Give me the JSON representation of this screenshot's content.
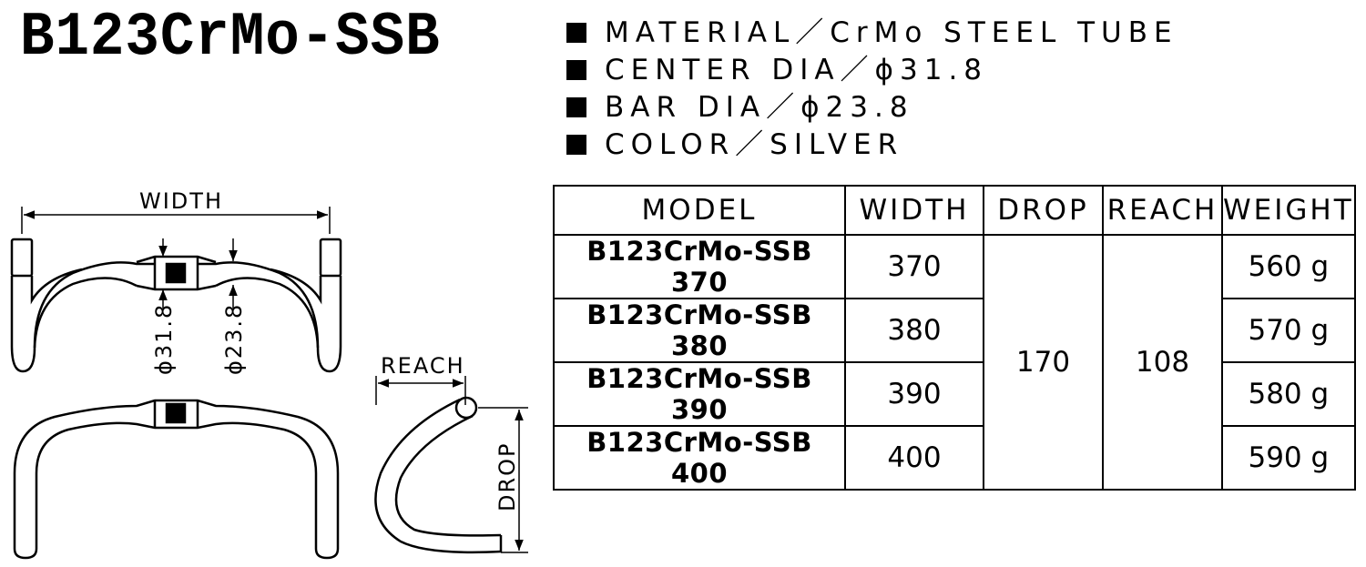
{
  "title": "B123CrMo-SSB",
  "specs": [
    "MATERIAL／CrMo STEEL TUBE",
    "CENTER DIA／ϕ31.8",
    "BAR DIA／ϕ23.8",
    "COLOR／SILVER"
  ],
  "table": {
    "headers": [
      "MODEL",
      "WIDTH",
      "DROP",
      "REACH",
      "WEIGHT"
    ],
    "rows": [
      {
        "model": "B123CrMo-SSB 370",
        "width": "370",
        "weight": "560 g"
      },
      {
        "model": "B123CrMo-SSB 380",
        "width": "380",
        "weight": "570 g"
      },
      {
        "model": "B123CrMo-SSB 390",
        "width": "390",
        "weight": "580 g"
      },
      {
        "model": "B123CrMo-SSB 400",
        "width": "400",
        "weight": "590 g"
      }
    ],
    "drop": "170",
    "reach": "108"
  },
  "diagram": {
    "width_label": "WIDTH",
    "center_dia_label": "ϕ31.8",
    "bar_dia_label": "ϕ23.8",
    "reach_label": "REACH",
    "drop_label": "DROP"
  }
}
